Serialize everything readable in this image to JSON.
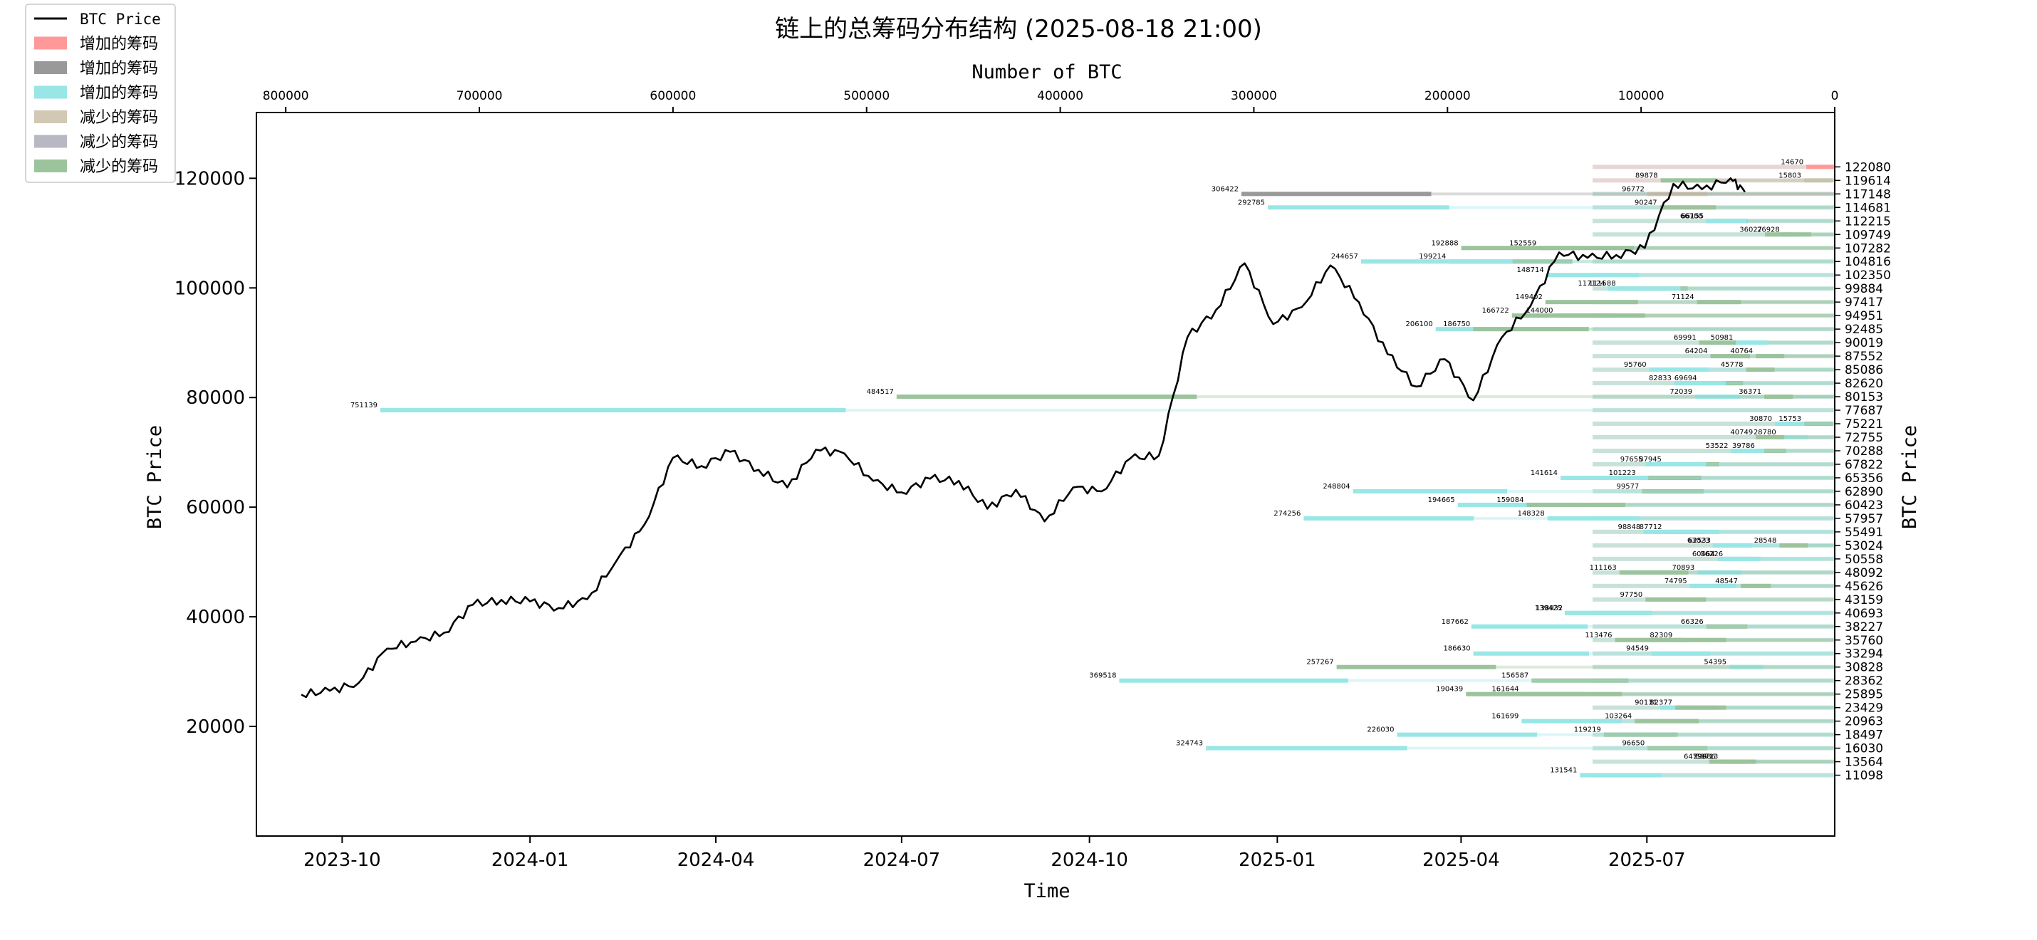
{
  "chart_data": {
    "type": "line",
    "title": "链上的总筹码分布结构 (2025-08-18 21:00)",
    "xlabel": "Time",
    "ylabel": "BTC Price",
    "ylabel_right": "BTC Price",
    "xlabel_top": "Number of BTC",
    "ylim": [
      0,
      132000
    ],
    "top_xlim": [
      810000,
      0
    ],
    "time_ticks": [
      "2023-10",
      "2024-01",
      "2024-04",
      "2024-07",
      "2024-10",
      "2025-01",
      "2025-04",
      "2025-07"
    ],
    "y_ticks": [
      "20000",
      "40000",
      "60000",
      "80000",
      "100000",
      "120000"
    ],
    "top_ticks": [
      "800000",
      "700000",
      "600000",
      "500000",
      "400000",
      "300000",
      "200000",
      "100000",
      "0"
    ],
    "grid": false,
    "legend_position": "top-left",
    "legend": [
      {
        "label": "BTC Price",
        "color": "#000000",
        "kind": "line"
      },
      {
        "label": "增加的筹码",
        "color": "#ff9999",
        "kind": "patch"
      },
      {
        "label": "增加的筹码",
        "color": "#999999",
        "kind": "patch"
      },
      {
        "label": "增加的筹码",
        "color": "#99e6e6",
        "kind": "patch"
      },
      {
        "label": "减少的筹码",
        "color": "#d2c9b4",
        "kind": "patch"
      },
      {
        "label": "减少的筹码",
        "color": "#b8b8c4",
        "kind": "patch"
      },
      {
        "label": "减少的筹码",
        "color": "#9cc49c",
        "kind": "patch"
      }
    ],
    "price_series": {
      "name": "BTC Price",
      "x": [
        "2023-09-11",
        "2023-09-25",
        "2023-10-09",
        "2023-10-23",
        "2023-11-06",
        "2023-11-20",
        "2023-12-04",
        "2023-12-18",
        "2024-01-01",
        "2024-01-15",
        "2024-01-29",
        "2024-02-12",
        "2024-02-26",
        "2024-03-11",
        "2024-03-25",
        "2024-04-08",
        "2024-04-22",
        "2024-05-06",
        "2024-05-20",
        "2024-06-03",
        "2024-06-17",
        "2024-07-01",
        "2024-07-15",
        "2024-07-29",
        "2024-08-12",
        "2024-08-26",
        "2024-09-09",
        "2024-09-23",
        "2024-10-07",
        "2024-10-21",
        "2024-11-04",
        "2024-11-18",
        "2024-12-02",
        "2024-12-16",
        "2024-12-30",
        "2025-01-13",
        "2025-01-27",
        "2025-02-10",
        "2025-02-24",
        "2025-03-10",
        "2025-03-24",
        "2025-04-07",
        "2025-04-21",
        "2025-05-05",
        "2025-05-19",
        "2025-06-02",
        "2025-06-16",
        "2025-06-30",
        "2025-07-14",
        "2025-07-28",
        "2025-08-11",
        "2025-08-18"
      ],
      "values": [
        25800,
        26500,
        27900,
        34200,
        35500,
        37100,
        42200,
        43100,
        42800,
        41600,
        43200,
        50000,
        56800,
        69000,
        67500,
        70100,
        66800,
        63600,
        70500,
        69800,
        64800,
        62700,
        65200,
        64800,
        59700,
        63200,
        57400,
        63600,
        62900,
        68900,
        69400,
        91000,
        96000,
        104500,
        93400,
        96500,
        104100,
        97400,
        87900,
        82000,
        87000,
        79500,
        91000,
        96700,
        106500,
        105500,
        106000,
        107300,
        119000,
        118000,
        120000,
        117500
      ]
    },
    "distribution": {
      "price_levels": [
        122080,
        119614,
        117148,
        114681,
        112215,
        109749,
        107282,
        104816,
        102350,
        99884,
        97417,
        94951,
        92485,
        90019,
        87552,
        85086,
        82620,
        80153,
        77687,
        75221,
        72755,
        70288,
        67822,
        65356,
        62890,
        60423,
        57957,
        55491,
        53024,
        50558,
        48092,
        45626,
        43159,
        40693,
        38227,
        35760,
        33294,
        30828,
        28362,
        25895,
        23429,
        20963,
        18497,
        16030,
        13564,
        11098
      ],
      "changes": [
        {
          "y": 122080,
          "amount": 14670,
          "kind": "increase",
          "color": "#ff9999"
        },
        {
          "y": 119614,
          "amount": 15803,
          "kind": "decrease",
          "color": "#d2c9b4"
        },
        {
          "y": 119614,
          "amount": 89878,
          "kind": "decrease",
          "color": "#9cc49c"
        },
        {
          "y": 117148,
          "amount": 96772,
          "kind": "decrease",
          "color": "#d2c9b4"
        },
        {
          "y": 117148,
          "amount": 306422,
          "kind": "increase",
          "color": "#999999"
        },
        {
          "y": 114681,
          "amount": 292785,
          "kind": "increase",
          "color": "#99e6e6"
        },
        {
          "y": 114681,
          "amount": 90247,
          "kind": "decrease",
          "color": "#9cc49c"
        },
        {
          "y": 112215,
          "amount": 66155,
          "kind": "decrease",
          "color": "#9cc49c"
        },
        {
          "y": 112215,
          "amount": 66700,
          "kind": "increase",
          "color": "#99e6e6"
        },
        {
          "y": 109749,
          "amount": 26928,
          "kind": "decrease",
          "color": "#9cc49c"
        },
        {
          "y": 109749,
          "amount": 36027,
          "kind": "decrease",
          "color": "#9cc49c"
        },
        {
          "y": 107282,
          "amount": 152559,
          "kind": "decrease",
          "color": "#9cc49c"
        },
        {
          "y": 107282,
          "amount": 192888,
          "kind": "decrease",
          "color": "#9cc49c"
        },
        {
          "y": 104816,
          "amount": 199214,
          "kind": "decrease",
          "color": "#9cc49c"
        },
        {
          "y": 104816,
          "amount": 244657,
          "kind": "increase",
          "color": "#99e6e6"
        },
        {
          "y": 102350,
          "amount": 148714,
          "kind": "increase",
          "color": "#99e6e6"
        },
        {
          "y": 99884,
          "amount": 111588,
          "kind": "decrease",
          "color": "#9cc49c"
        },
        {
          "y": 99884,
          "amount": 117124,
          "kind": "increase",
          "color": "#99e6e6"
        },
        {
          "y": 97417,
          "amount": 71124,
          "kind": "decrease",
          "color": "#9cc49c"
        },
        {
          "y": 97417,
          "amount": 149402,
          "kind": "decrease",
          "color": "#9cc49c"
        },
        {
          "y": 94951,
          "amount": 144000,
          "kind": "decrease",
          "color": "#9cc49c"
        },
        {
          "y": 94951,
          "amount": 166722,
          "kind": "decrease",
          "color": "#9cc49c"
        },
        {
          "y": 92485,
          "amount": 206100,
          "kind": "increase",
          "color": "#99e6e6"
        },
        {
          "y": 92485,
          "amount": 186750,
          "kind": "decrease",
          "color": "#9cc49c"
        },
        {
          "y": 90019,
          "amount": 69991,
          "kind": "decrease",
          "color": "#9cc49c"
        },
        {
          "y": 90019,
          "amount": 50981,
          "kind": "increase",
          "color": "#99e6e6"
        },
        {
          "y": 87552,
          "amount": 40764,
          "kind": "decrease",
          "color": "#9cc49c"
        },
        {
          "y": 87552,
          "amount": 64204,
          "kind": "decrease",
          "color": "#9cc49c"
        },
        {
          "y": 85086,
          "amount": 95760,
          "kind": "increase",
          "color": "#99e6e6"
        },
        {
          "y": 85086,
          "amount": 45778,
          "kind": "decrease",
          "color": "#9cc49c"
        },
        {
          "y": 82620,
          "amount": 69694,
          "kind": "decrease",
          "color": "#9cc49c"
        },
        {
          "y": 82620,
          "amount": 82833,
          "kind": "increase",
          "color": "#99e6e6"
        },
        {
          "y": 80153,
          "amount": 72039,
          "kind": "increase",
          "color": "#99e6e6"
        },
        {
          "y": 80153,
          "amount": 36371,
          "kind": "decrease",
          "color": "#9cc49c"
        },
        {
          "y": 80153,
          "amount": 484517,
          "kind": "decrease",
          "color": "#9cc49c"
        },
        {
          "y": 77687,
          "amount": 751139,
          "kind": "increase",
          "color": "#99e6e6"
        },
        {
          "y": 75221,
          "amount": 15753,
          "kind": "decrease",
          "color": "#9cc49c"
        },
        {
          "y": 75221,
          "amount": 30870,
          "kind": "increase",
          "color": "#99e6e6"
        },
        {
          "y": 72755,
          "amount": 28780,
          "kind": "increase",
          "color": "#99e6e6"
        },
        {
          "y": 72755,
          "amount": 40749,
          "kind": "decrease",
          "color": "#9cc49c"
        },
        {
          "y": 70288,
          "amount": 39786,
          "kind": "decrease",
          "color": "#9cc49c"
        },
        {
          "y": 70288,
          "amount": 53522,
          "kind": "increase",
          "color": "#99e6e6"
        },
        {
          "y": 67822,
          "amount": 87945,
          "kind": "decrease",
          "color": "#9cc49c"
        },
        {
          "y": 67822,
          "amount": 97655,
          "kind": "increase",
          "color": "#99e6e6"
        },
        {
          "y": 65356,
          "amount": 101223,
          "kind": "decrease",
          "color": "#9cc49c"
        },
        {
          "y": 65356,
          "amount": 141614,
          "kind": "increase",
          "color": "#99e6e6"
        },
        {
          "y": 62890,
          "amount": 99577,
          "kind": "decrease",
          "color": "#9cc49c"
        },
        {
          "y": 62890,
          "amount": 248804,
          "kind": "increase",
          "color": "#99e6e6"
        },
        {
          "y": 60423,
          "amount": 194665,
          "kind": "increase",
          "color": "#99e6e6"
        },
        {
          "y": 60423,
          "amount": 159084,
          "kind": "decrease",
          "color": "#9cc49c"
        },
        {
          "y": 57957,
          "amount": 148328,
          "kind": "increase",
          "color": "#99e6e6"
        },
        {
          "y": 57957,
          "amount": 274256,
          "kind": "increase",
          "color": "#99e6e6"
        },
        {
          "y": 55491,
          "amount": 98848,
          "kind": "increase",
          "color": "#99e6e6"
        },
        {
          "y": 55491,
          "amount": 87712,
          "kind": "increase",
          "color": "#99e6e6"
        },
        {
          "y": 53024,
          "amount": 62533,
          "kind": "increase",
          "color": "#99e6e6"
        },
        {
          "y": 53024,
          "amount": 63023,
          "kind": "increase",
          "color": "#99e6e6"
        },
        {
          "y": 53024,
          "amount": 28548,
          "kind": "decrease",
          "color": "#9cc49c"
        },
        {
          "y": 50558,
          "amount": 60464,
          "kind": "increase",
          "color": "#99e6e6"
        },
        {
          "y": 50558,
          "amount": 56226,
          "kind": "increase",
          "color": "#99e6e6"
        },
        {
          "y": 48092,
          "amount": 70893,
          "kind": "increase",
          "color": "#99e6e6"
        },
        {
          "y": 48092,
          "amount": 111163,
          "kind": "decrease",
          "color": "#9cc49c"
        },
        {
          "y": 45626,
          "amount": 74795,
          "kind": "increase",
          "color": "#99e6e6"
        },
        {
          "y": 45626,
          "amount": 48547,
          "kind": "decrease",
          "color": "#9cc49c"
        },
        {
          "y": 43159,
          "amount": 97750,
          "kind": "decrease",
          "color": "#9cc49c"
        },
        {
          "y": 40693,
          "amount": 139425,
          "kind": "increase",
          "color": "#99e6e6"
        },
        {
          "y": 40693,
          "amount": 138932,
          "kind": "increase",
          "color": "#99e6e6"
        },
        {
          "y": 38227,
          "amount": 66326,
          "kind": "decrease",
          "color": "#9cc49c"
        },
        {
          "y": 38227,
          "amount": 187662,
          "kind": "increase",
          "color": "#99e6e6"
        },
        {
          "y": 35760,
          "amount": 82309,
          "kind": "decrease",
          "color": "#9cc49c"
        },
        {
          "y": 35760,
          "amount": 113476,
          "kind": "decrease",
          "color": "#9cc49c"
        },
        {
          "y": 33294,
          "amount": 186630,
          "kind": "increase",
          "color": "#99e6e6"
        },
        {
          "y": 33294,
          "amount": 94549,
          "kind": "increase",
          "color": "#99e6e6"
        },
        {
          "y": 30828,
          "amount": 54395,
          "kind": "increase",
          "color": "#99e6e6"
        },
        {
          "y": 30828,
          "amount": 257267,
          "kind": "decrease",
          "color": "#9cc49c"
        },
        {
          "y": 28362,
          "amount": 156587,
          "kind": "decrease",
          "color": "#9cc49c"
        },
        {
          "y": 28362,
          "amount": 369518,
          "kind": "increase",
          "color": "#99e6e6"
        },
        {
          "y": 25895,
          "amount": 161644,
          "kind": "decrease",
          "color": "#9cc49c"
        },
        {
          "y": 25895,
          "amount": 190439,
          "kind": "decrease",
          "color": "#9cc49c"
        },
        {
          "y": 23429,
          "amount": 90131,
          "kind": "increase",
          "color": "#99e6e6"
        },
        {
          "y": 23429,
          "amount": 82377,
          "kind": "decrease",
          "color": "#9cc49c"
        },
        {
          "y": 20963,
          "amount": 161699,
          "kind": "increase",
          "color": "#99e6e6"
        },
        {
          "y": 20963,
          "amount": 103264,
          "kind": "decrease",
          "color": "#9cc49c"
        },
        {
          "y": 18497,
          "amount": 119219,
          "kind": "decrease",
          "color": "#9cc49c"
        },
        {
          "y": 18497,
          "amount": 226030,
          "kind": "increase",
          "color": "#99e6e6"
        },
        {
          "y": 16030,
          "amount": 96650,
          "kind": "decrease",
          "color": "#9cc49c"
        },
        {
          "y": 16030,
          "amount": 324743,
          "kind": "increase",
          "color": "#99e6e6"
        },
        {
          "y": 13564,
          "amount": 58713,
          "kind": "increase",
          "color": "#99e6e6"
        },
        {
          "y": 13564,
          "amount": 59986,
          "kind": "decrease",
          "color": "#9cc49c"
        },
        {
          "y": 13564,
          "amount": 64796,
          "kind": "decrease",
          "color": "#9cc49c"
        },
        {
          "y": 11098,
          "amount": 131541,
          "kind": "increase",
          "color": "#99e6e6"
        }
      ]
    }
  }
}
